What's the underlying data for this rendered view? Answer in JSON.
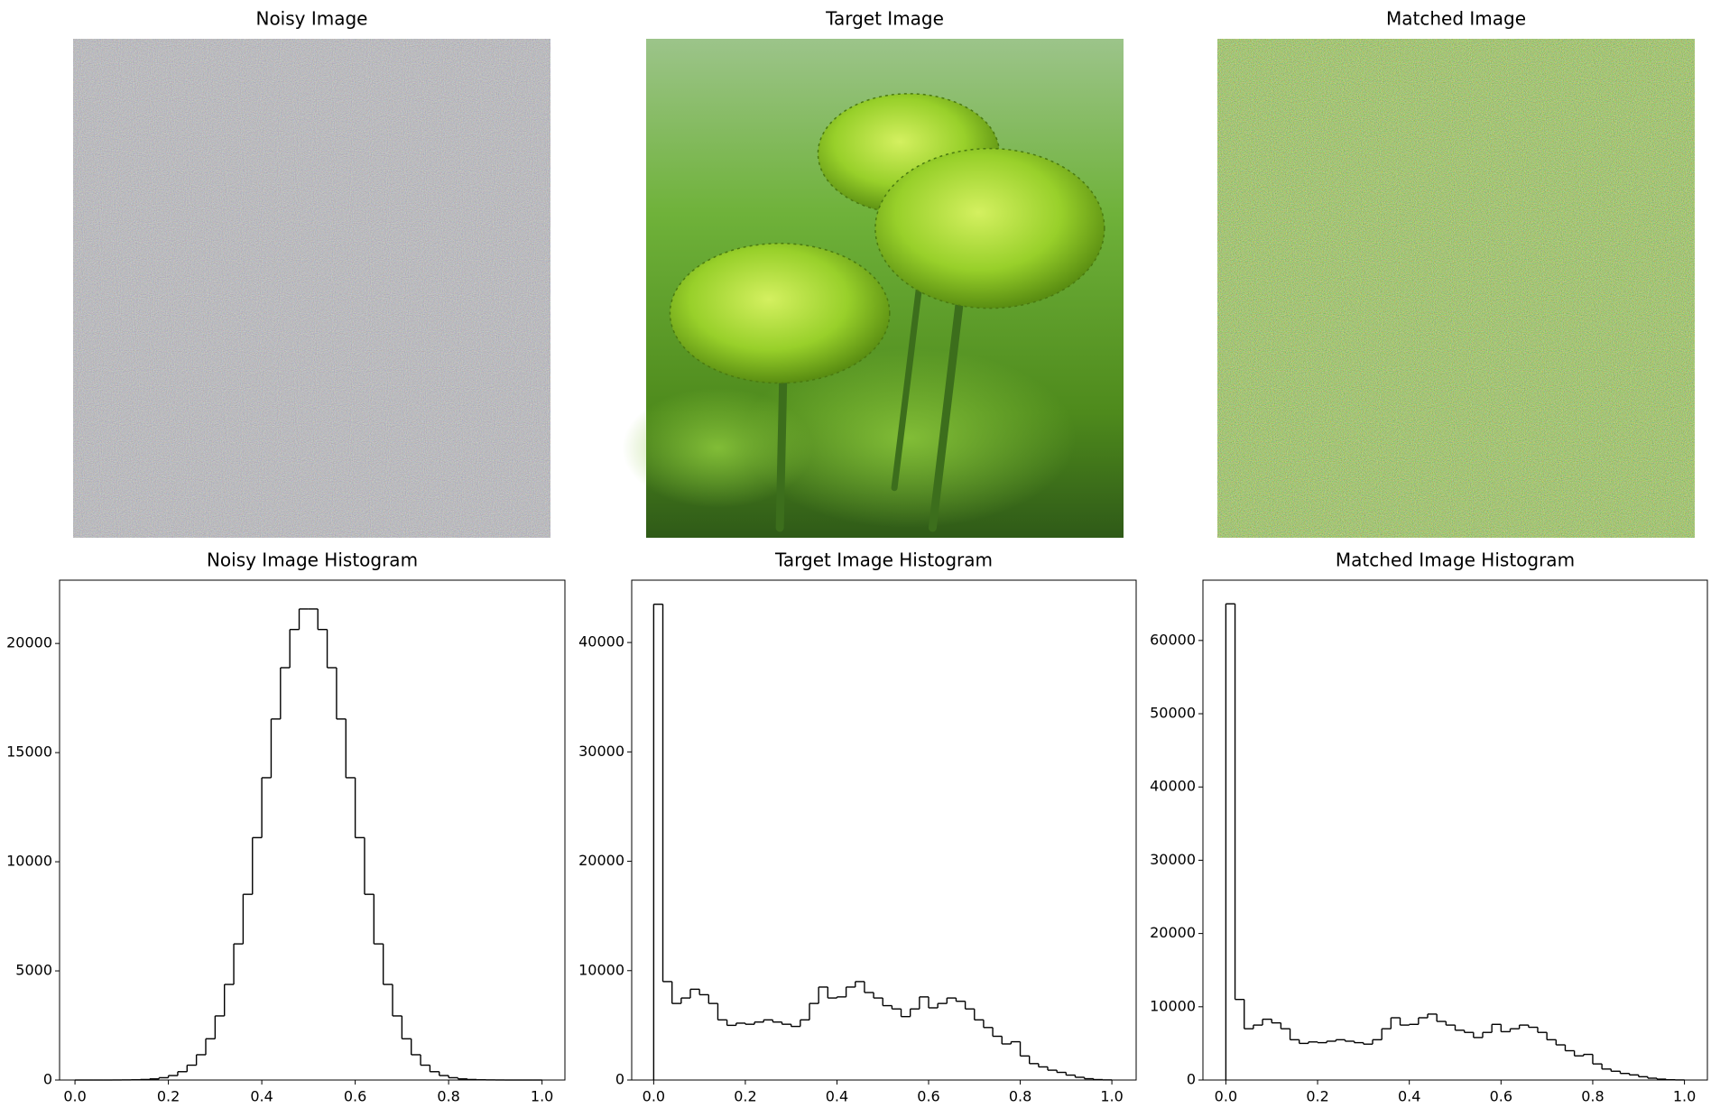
{
  "chart_data": [
    {
      "type": "image",
      "title": "Noisy Image"
    },
    {
      "type": "image",
      "title": "Target Image"
    },
    {
      "type": "image",
      "title": "Matched Image"
    },
    {
      "type": "histogram",
      "title": "Noisy Image Histogram",
      "bins": [
        0,
        0.02,
        0.04,
        0.06,
        0.08,
        0.1,
        0.12,
        0.14,
        0.16,
        0.18,
        0.2,
        0.22,
        0.24,
        0.26,
        0.28,
        0.3,
        0.32,
        0.34,
        0.36,
        0.38,
        0.4,
        0.42,
        0.44,
        0.46,
        0.48,
        0.5,
        0.52,
        0.54,
        0.56,
        0.58,
        0.6,
        0.62,
        0.64,
        0.66,
        0.68,
        0.7,
        0.72,
        0.74,
        0.76,
        0.78,
        0.8,
        0.82,
        0.84,
        0.86,
        0.88,
        0.9,
        0.92,
        0.94,
        0.96,
        0.98,
        1
      ],
      "values": [
        0,
        0,
        0,
        0,
        2,
        5,
        11,
        24,
        52,
        106,
        205,
        382,
        681,
        1159,
        1890,
        2937,
        4379,
        6237,
        8508,
        11104,
        13850,
        16540,
        18890,
        20640,
        21580,
        21580,
        20640,
        18890,
        16540,
        13850,
        11104,
        8508,
        6237,
        4379,
        2937,
        1890,
        1159,
        681,
        382,
        205,
        106,
        52,
        24,
        11,
        5,
        2,
        0,
        0,
        0,
        0
      ],
      "color": "#000000",
      "xlim": [
        -0.033,
        1.049
      ],
      "xticks": [
        {
          "value": 0,
          "label": "0.0"
        },
        0.2,
        0.4,
        0.6,
        0.8,
        {
          "value": 1,
          "label": "1.0"
        }
      ],
      "ylim": [
        0,
        22900
      ],
      "yticks": [
        0,
        5000,
        10000,
        15000,
        20000
      ]
    },
    {
      "type": "histogram",
      "title": "Target Image Histogram",
      "bins": [
        0,
        0.02,
        0.04,
        0.06,
        0.08,
        0.1,
        0.12,
        0.14,
        0.16,
        0.18,
        0.2,
        0.22,
        0.24,
        0.26,
        0.28,
        0.3,
        0.32,
        0.34,
        0.36,
        0.38,
        0.4,
        0.42,
        0.44,
        0.46,
        0.48,
        0.5,
        0.52,
        0.54,
        0.56,
        0.58,
        0.6,
        0.62,
        0.64,
        0.66,
        0.68,
        0.7,
        0.72,
        0.74,
        0.76,
        0.78,
        0.8,
        0.82,
        0.84,
        0.86,
        0.88,
        0.9,
        0.92,
        0.94,
        0.96,
        0.98,
        1
      ],
      "values": [
        43500,
        9000,
        7000,
        7500,
        8300,
        7800,
        7000,
        5500,
        5000,
        5200,
        5100,
        5300,
        5500,
        5300,
        5100,
        4900,
        5500,
        7000,
        8500,
        7500,
        7600,
        8500,
        9000,
        8000,
        7500,
        6800,
        6500,
        5800,
        6500,
        7600,
        6600,
        7000,
        7500,
        7200,
        6500,
        5500,
        4800,
        4000,
        3300,
        3500,
        2200,
        1500,
        1200,
        900,
        700,
        450,
        250,
        120,
        40,
        10
      ],
      "color": "#000000",
      "xlim": [
        -0.048,
        1.053
      ],
      "xticks": [
        {
          "value": 0,
          "label": "0.0"
        },
        0.2,
        0.4,
        0.6,
        0.8,
        {
          "value": 1,
          "label": "1.0"
        }
      ],
      "ylim": [
        0,
        45700
      ],
      "yticks": [
        0,
        10000,
        20000,
        30000,
        40000
      ]
    },
    {
      "type": "histogram",
      "title": "Matched Image Histogram",
      "bins": [
        0,
        0.02,
        0.04,
        0.06,
        0.08,
        0.1,
        0.12,
        0.14,
        0.16,
        0.18,
        0.2,
        0.22,
        0.24,
        0.26,
        0.28,
        0.3,
        0.32,
        0.34,
        0.36,
        0.38,
        0.4,
        0.42,
        0.44,
        0.46,
        0.48,
        0.5,
        0.52,
        0.54,
        0.56,
        0.58,
        0.6,
        0.62,
        0.64,
        0.66,
        0.68,
        0.7,
        0.72,
        0.74,
        0.76,
        0.78,
        0.8,
        0.82,
        0.84,
        0.86,
        0.88,
        0.9,
        0.92,
        0.94,
        0.96,
        0.98,
        1
      ],
      "values": [
        65000,
        11000,
        7000,
        7500,
        8300,
        7800,
        7000,
        5500,
        5000,
        5200,
        5100,
        5300,
        5500,
        5300,
        5100,
        4900,
        5500,
        7000,
        8500,
        7500,
        7600,
        8500,
        9000,
        8000,
        7500,
        6800,
        6500,
        5800,
        6500,
        7600,
        6600,
        7000,
        7500,
        7200,
        6500,
        5500,
        4800,
        4000,
        3300,
        3500,
        2200,
        1500,
        1200,
        900,
        700,
        450,
        250,
        120,
        40,
        10
      ],
      "color": "#000000",
      "xlim": [
        -0.05,
        1.05
      ],
      "xticks": [
        {
          "value": 0,
          "label": "0.0"
        },
        0.2,
        0.4,
        0.6,
        0.8,
        {
          "value": 1,
          "label": "1.0"
        }
      ],
      "ylim": [
        0,
        68230
      ],
      "yticks": [
        0,
        10000,
        20000,
        30000,
        40000,
        50000,
        60000
      ]
    }
  ]
}
